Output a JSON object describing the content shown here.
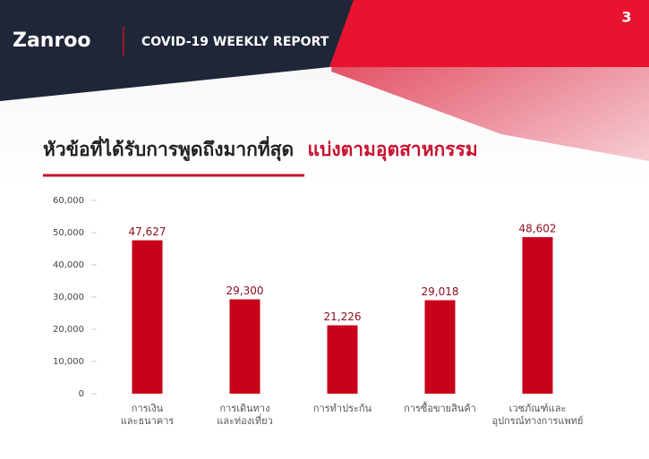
{
  "header": {
    "logo": "Zanroo",
    "report_title": "COVID-19 WEEKLY REPORT",
    "page_number": "3"
  },
  "chart_data": {
    "type": "bar",
    "title": "หัวข้อที่ได้รับการพูดถึงมากที่สุด",
    "title_highlight": "แบ่งตามอุตสาหกรรม",
    "categories": [
      "การเงิน\nและธนาคาร",
      "การเดินทาง\nและท่องเที่ยว",
      "การทำประกัน",
      "การซื้อขายสินค้า",
      "เวชภัณฑ์และ\nอุปกรณ์ทางการแพทย์"
    ],
    "values": [
      47627,
      29300,
      21226,
      29018,
      48602
    ],
    "value_labels": [
      "47,627",
      "29,300",
      "21,226",
      "29,018",
      "48,602"
    ],
    "color": "#c8001a",
    "ylim": [
      0,
      60000
    ],
    "yticks": [
      0,
      {
        "value": 10000,
        "label": "10,000"
      },
      {
        "value": 20000,
        "label": "20,000"
      },
      {
        "value": 30000,
        "label": "30,000"
      },
      {
        "value": 40000,
        "label": "40,000"
      },
      {
        "value": 50000,
        "label": "50,000"
      },
      {
        "value": 60000,
        "label": "60,000"
      }
    ]
  }
}
